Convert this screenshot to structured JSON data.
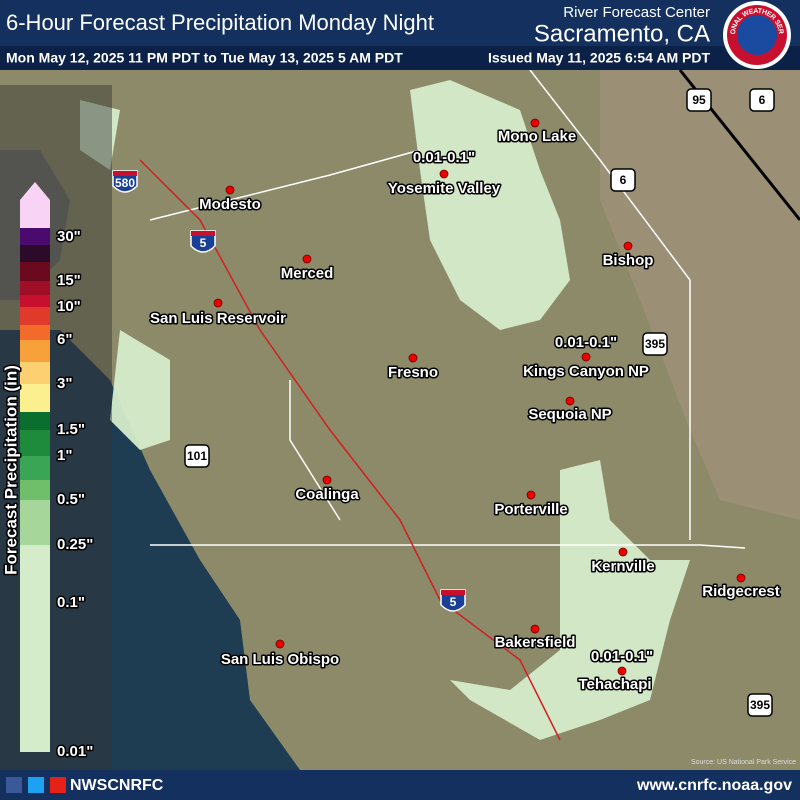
{
  "header": {
    "title": "6-Hour Forecast Precipitation Monday Night",
    "center": "River Forecast Center",
    "location": "Sacramento, CA",
    "valid": "Mon May 12, 2025 11 PM PDT to Tue May 13, 2025 5 AM PDT",
    "issued": "Issued May 11, 2025 6:54 AM PDT"
  },
  "logo": {
    "text": "NATIONAL WEATHER SERVICE"
  },
  "legend": {
    "title": "Forecast Precipitation (in)",
    "labels": [
      "30\"",
      "15\"",
      "10\"",
      "6\"",
      "3\"",
      "1.5\"",
      "1\"",
      "0.5\"",
      "0.25\"",
      "0.1\"",
      "0.01\""
    ],
    "colors": [
      "#f9d3f5",
      "#4b0b6e",
      "#2c0a2a",
      "#6b0a1e",
      "#9e0e26",
      "#c8102e",
      "#e03a2a",
      "#f46a2a",
      "#f8a03a",
      "#fcd070",
      "#fbef90",
      "#0a6e2e",
      "#1e8a3c",
      "#3aa655",
      "#6fbf6a",
      "#a6d69a",
      "#d5ecca"
    ]
  },
  "cities": [
    "Modesto",
    "Merced",
    "San Luis Reservoir",
    "Fresno",
    "Coalinga",
    "San Luis Obispo",
    "Bakersfield",
    "Porterville",
    "Kernville",
    "Ridgecrest",
    "Tehachapi",
    "Sequoia NP",
    "Kings Canyon NP",
    "Bishop",
    "Mono Lake",
    "Yosemite Valley"
  ],
  "precip_labels": [
    "0.01-0.1\"",
    "0.01-0.1\"",
    "0.01-0.1\""
  ],
  "highways": [
    "580",
    "5",
    "5",
    "101",
    "395",
    "395",
    "95",
    "6",
    "6"
  ],
  "footer": {
    "handle": "NWSCNRFC",
    "url": "www.cnrfc.noaa.gov",
    "source": "Source: US National Park Service"
  }
}
